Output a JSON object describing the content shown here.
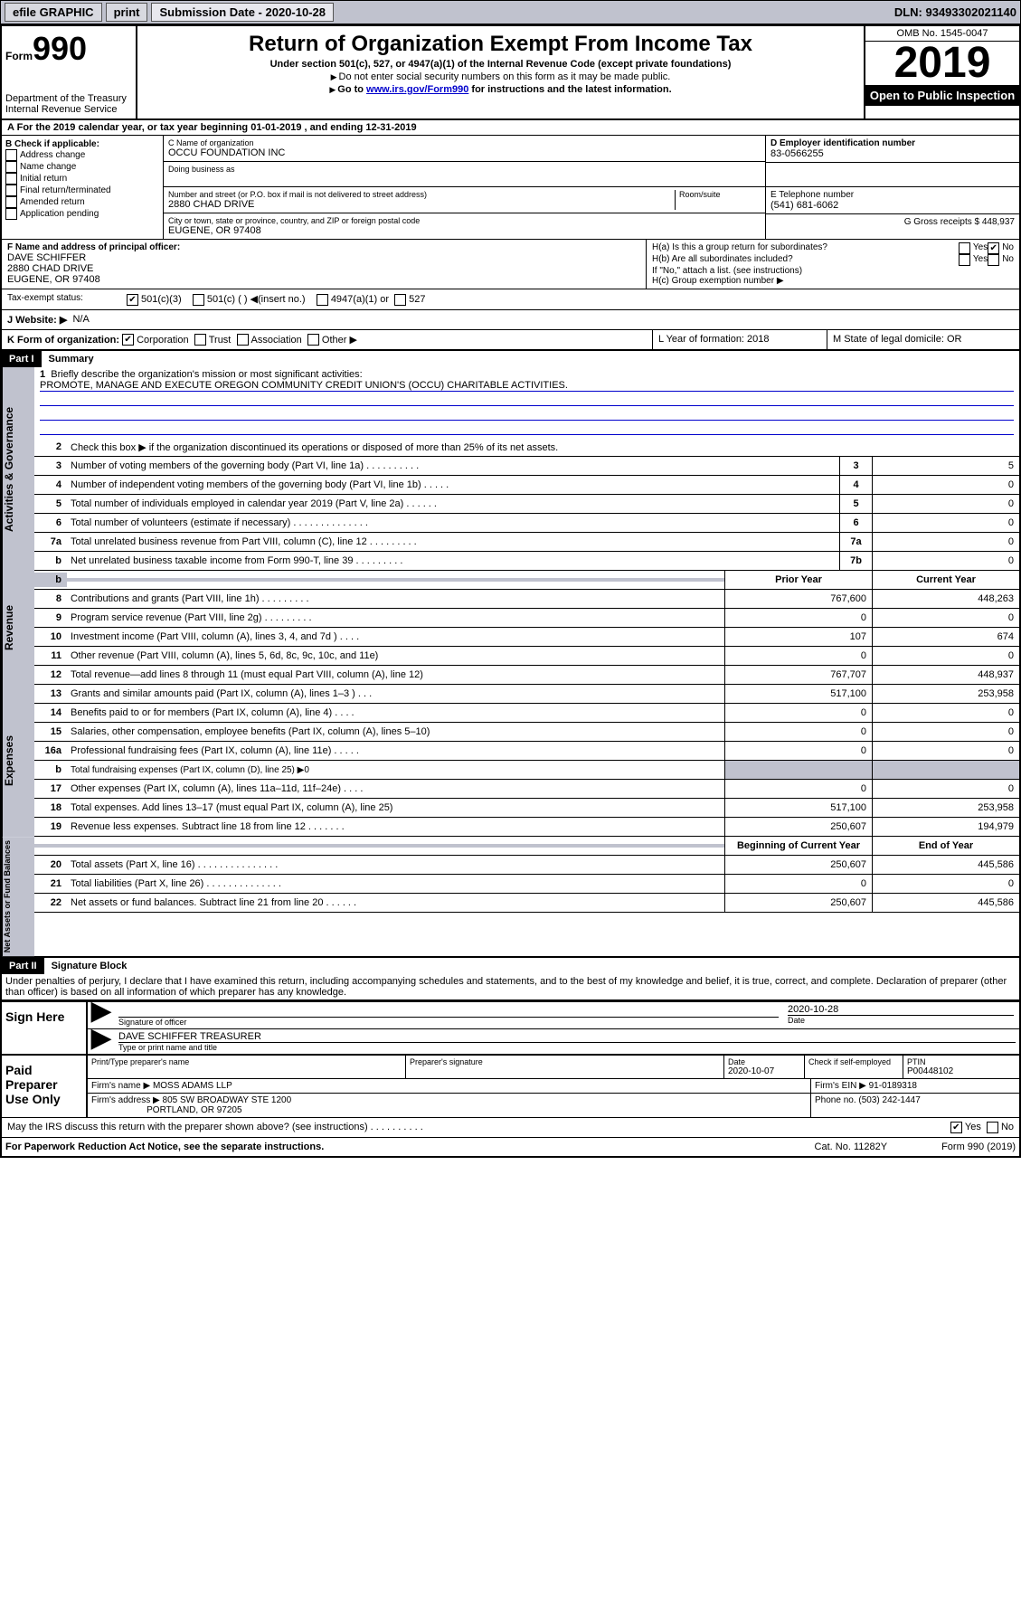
{
  "topbar": {
    "efile": "efile GRAPHIC",
    "print": "print",
    "sub_label": "Submission Date - ",
    "sub_date": "2020-10-28",
    "dln": "DLN: 93493302021140"
  },
  "header": {
    "form_word": "Form",
    "form_num": "990",
    "dept": "Department of the Treasury\nInternal Revenue Service",
    "title": "Return of Organization Exempt From Income Tax",
    "sub1": "Under section 501(c), 527, or 4947(a)(1) of the Internal Revenue Code (except private foundations)",
    "sub2": "Do not enter social security numbers on this form as it may be made public.",
    "sub3a": "Go to ",
    "sub3b": "www.irs.gov/Form990",
    "sub3c": " for instructions and the latest information.",
    "omb": "OMB No. 1545-0047",
    "year": "2019",
    "open": "Open to Public Inspection"
  },
  "line_a": "For the 2019 calendar year, or tax year beginning 01-01-2019     , and ending 12-31-2019",
  "box_b": {
    "hdr": "B Check if applicable:",
    "o1": "Address change",
    "o2": "Name change",
    "o3": "Initial return",
    "o4": "Final return/terminated",
    "o5": "Amended return",
    "o6": "Application pending"
  },
  "box_c": {
    "lbl": "C Name of organization",
    "name": "OCCU FOUNDATION INC",
    "dba": "Doing business as",
    "addr_lbl": "Number and street (or P.O. box if mail is not delivered to street address)",
    "addr": "2880 CHAD DRIVE",
    "room": "Room/suite",
    "city_lbl": "City or town, state or province, country, and ZIP or foreign postal code",
    "city": "EUGENE, OR  97408"
  },
  "box_d": {
    "lbl": "D Employer identification number",
    "val": "83-0566255"
  },
  "box_e": {
    "lbl": "E Telephone number",
    "val": "(541) 681-6062"
  },
  "box_g": "G Gross receipts $ 448,937",
  "box_f": {
    "lbl": "F  Name and address of principal officer:",
    "name": "DAVE SCHIFFER",
    "addr": "2880 CHAD DRIVE",
    "city": "EUGENE, OR  97408"
  },
  "box_h": {
    "a": "H(a)  Is this a group return for subordinates?",
    "b": "H(b)  Are all subordinates included?",
    "b2": "If \"No,\" attach a list. (see instructions)",
    "c": "H(c)  Group exemption number ▶",
    "yes": "Yes",
    "no": "No"
  },
  "box_i": {
    "lbl": "Tax-exempt status:",
    "o1": "501(c)(3)",
    "o2": "501(c) (   ) ◀(insert no.)",
    "o3": "4947(a)(1) or",
    "o4": "527"
  },
  "box_j": {
    "lbl": "J   Website: ▶",
    "val": "N/A"
  },
  "box_k": {
    "lbl": "K Form of organization:",
    "o1": "Corporation",
    "o2": "Trust",
    "o3": "Association",
    "o4": "Other ▶"
  },
  "box_l": "L Year of formation: 2018",
  "box_m": "M State of legal domicile: OR",
  "part1": {
    "bar": "Part I",
    "title": "Summary"
  },
  "summary": {
    "l1": "Briefly describe the organization's mission or most significant activities:",
    "mission": "PROMOTE, MANAGE AND EXECUTE OREGON COMMUNITY CREDIT UNION'S (OCCU) CHARITABLE ACTIVITIES.",
    "l2": "Check this box ▶       if the organization discontinued its operations or disposed of more than 25% of its net assets.",
    "l3": "Number of voting members of the governing body (Part VI, line 1a)   .    .    .    .    .    .    .    .    .    .",
    "l4": "Number of independent voting members of the governing body (Part VI, line 1b)    .    .    .    .    .",
    "l5": "Total number of individuals employed in calendar year 2019 (Part V, line 2a)    .    .    .    .    .    .",
    "l6": "Total number of volunteers (estimate if necessary)    .    .    .    .    .    .    .    .    .    .    .    .    .    .",
    "l7a": "Total unrelated business revenue from Part VIII, column (C), line 12    .    .    .    .    .    .    .    .    .",
    "l7b": "Net unrelated business taxable income from Form 990-T, line 39     .    .    .    .    .    .    .    .    .",
    "v3": "5",
    "v4": "0",
    "v5": "0",
    "v6": "0",
    "v7a": "0",
    "v7b": "0"
  },
  "rev_hdr": {
    "prior": "Prior Year",
    "curr": "Current Year"
  },
  "revenue": [
    {
      "n": "8",
      "t": "Contributions and grants (Part VIII, line 1h)    .    .    .    .    .    .    .    .    .",
      "p": "767,600",
      "c": "448,263"
    },
    {
      "n": "9",
      "t": "Program service revenue (Part VIII, line 2g)    .    .    .    .    .    .    .    .    .",
      "p": "0",
      "c": "0"
    },
    {
      "n": "10",
      "t": "Investment income (Part VIII, column (A), lines 3, 4, and 7d )    .    .    .    .",
      "p": "107",
      "c": "674"
    },
    {
      "n": "11",
      "t": "Other revenue (Part VIII, column (A), lines 5, 6d, 8c, 9c, 10c, and 11e)",
      "p": "0",
      "c": "0"
    },
    {
      "n": "12",
      "t": "Total revenue—add lines 8 through 11 (must equal Part VIII, column (A), line 12)",
      "p": "767,707",
      "c": "448,937"
    }
  ],
  "expenses": [
    {
      "n": "13",
      "t": "Grants and similar amounts paid (Part IX, column (A), lines 1–3 )    .    .    .",
      "p": "517,100",
      "c": "253,958"
    },
    {
      "n": "14",
      "t": "Benefits paid to or for members (Part IX, column (A), line 4)    .    .    .    .",
      "p": "0",
      "c": "0"
    },
    {
      "n": "15",
      "t": "Salaries, other compensation, employee benefits (Part IX, column (A), lines 5–10)",
      "p": "0",
      "c": "0"
    },
    {
      "n": "16a",
      "t": "Professional fundraising fees (Part IX, column (A), line 11e)    .    .    .    .    .",
      "p": "0",
      "c": "0"
    },
    {
      "n": "b",
      "t": "Total fundraising expenses (Part IX, column (D), line 25) ▶0",
      "p": "",
      "c": "",
      "shade": true
    },
    {
      "n": "17",
      "t": "Other expenses (Part IX, column (A), lines 11a–11d, 11f–24e)    .    .    .    .",
      "p": "0",
      "c": "0"
    },
    {
      "n": "18",
      "t": "Total expenses. Add lines 13–17 (must equal Part IX, column (A), line 25)",
      "p": "517,100",
      "c": "253,958"
    },
    {
      "n": "19",
      "t": "Revenue less expenses. Subtract line 18 from line 12    .    .    .    .    .    .    .",
      "p": "250,607",
      "c": "194,979"
    }
  ],
  "net_hdr": {
    "beg": "Beginning of Current Year",
    "end": "End of Year"
  },
  "netassets": [
    {
      "n": "20",
      "t": "Total assets (Part X, line 16)    .    .    .    .    .    .    .    .    .    .    .    .    .    .    .",
      "p": "250,607",
      "c": "445,586"
    },
    {
      "n": "21",
      "t": "Total liabilities (Part X, line 26)     .    .    .    .    .    .    .    .    .    .    .    .    .    .",
      "p": "0",
      "c": "0"
    },
    {
      "n": "22",
      "t": "Net assets or fund balances. Subtract line 21 from line 20    .    .    .    .    .    .",
      "p": "250,607",
      "c": "445,586"
    }
  ],
  "vlabels": {
    "gov": "Activities & Governance",
    "rev": "Revenue",
    "exp": "Expenses",
    "net": "Net Assets or Fund Balances"
  },
  "part2": {
    "bar": "Part II",
    "title": "Signature Block"
  },
  "perjury": "Under penalties of perjury, I declare that I have examined this return, including accompanying schedules and statements, and to the best of my knowledge and belief, it is true, correct, and complete. Declaration of preparer (other than officer) is based on all information of which preparer has any knowledge.",
  "sign": {
    "here": "Sign Here",
    "sig_officer": "Signature of officer",
    "date": "2020-10-28",
    "date_lbl": "Date",
    "name": "DAVE SCHIFFER TREASURER",
    "name_lbl": "Type or print name and title"
  },
  "paid": {
    "here": "Paid Preparer Use Only",
    "h_prep": "Print/Type preparer's name",
    "h_sig": "Preparer's signature",
    "h_date": "Date",
    "date": "2020-10-07",
    "h_chk": "Check        if self-employed",
    "h_ptin": "PTIN",
    "ptin": "P00448102",
    "firm_lbl": "Firm's name    ▶",
    "firm": "MOSS ADAMS LLP",
    "ein_lbl": "Firm's EIN ▶",
    "ein": "91-0189318",
    "addr_lbl": "Firm's address ▶",
    "addr1": "805 SW BROADWAY STE 1200",
    "addr2": "PORTLAND, OR  97205",
    "phone_lbl": "Phone no.",
    "phone": "(503) 242-1447"
  },
  "discuss": "May the IRS discuss this return with the preparer shown above? (see instructions)     .    .    .    .    .    .    .    .    .    .",
  "footer": {
    "pra": "For Paperwork Reduction Act Notice, see the separate instructions.",
    "cat": "Cat. No. 11282Y",
    "form": "Form 990 (2019)"
  }
}
